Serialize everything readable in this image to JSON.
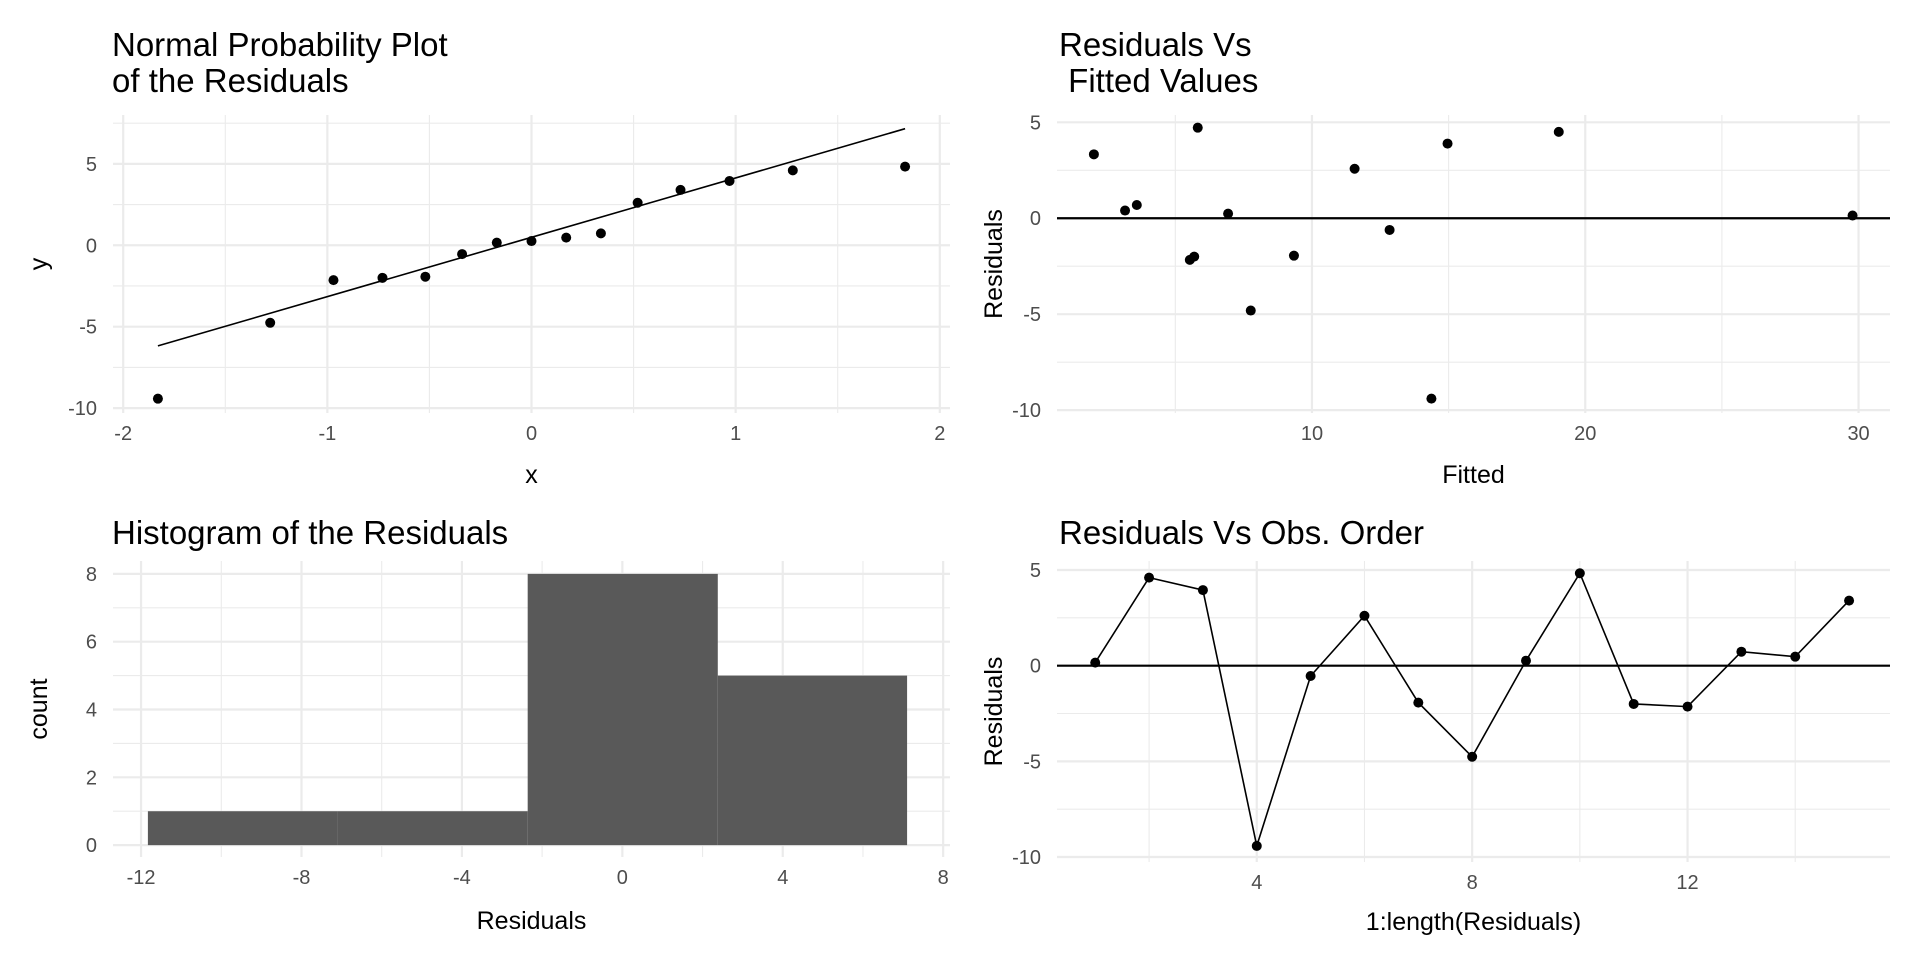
{
  "chart_data": [
    {
      "id": "qq",
      "type": "scatter",
      "title": [
        "Normal Probability Plot",
        "of the Residuals"
      ],
      "xlabel": "x",
      "ylabel": "y",
      "xlim": [
        -2.05,
        2.05
      ],
      "ylim": [
        -10.3,
        8.0
      ],
      "x_major_ticks": [
        -2,
        -1,
        0,
        1,
        2
      ],
      "x_minor_ticks": [
        -1.5,
        -0.5,
        0.5,
        1.5
      ],
      "x_tick_labels": [
        "-2",
        "-1",
        "0",
        "1",
        "2"
      ],
      "y_major_ticks": [
        -10,
        -5,
        0,
        5
      ],
      "y_minor_ticks": [
        -7.5,
        -2.5,
        2.5,
        7.5
      ],
      "y_tick_labels": [
        "-10",
        "-5",
        "0",
        "5"
      ],
      "points": [
        {
          "x": -1.83,
          "y": -9.42
        },
        {
          "x": -1.28,
          "y": -4.76
        },
        {
          "x": -0.97,
          "y": -2.14
        },
        {
          "x": -0.73,
          "y": -2.0
        },
        {
          "x": -0.52,
          "y": -1.93
        },
        {
          "x": -0.34,
          "y": -0.54
        },
        {
          "x": -0.17,
          "y": 0.16
        },
        {
          "x": 0.0,
          "y": 0.26
        },
        {
          "x": 0.17,
          "y": 0.47
        },
        {
          "x": 0.34,
          "y": 0.73
        },
        {
          "x": 0.52,
          "y": 2.61
        },
        {
          "x": 0.73,
          "y": 3.4
        },
        {
          "x": 0.97,
          "y": 3.95
        },
        {
          "x": 1.28,
          "y": 4.6
        },
        {
          "x": 1.83,
          "y": 4.83
        }
      ],
      "reference_line": {
        "x": [
          -1.83,
          1.83
        ],
        "y": [
          -6.18,
          7.16
        ]
      },
      "grid": true
    },
    {
      "id": "fitted",
      "type": "scatter",
      "title": [
        "Residuals Vs",
        " Fitted Values"
      ],
      "xlabel": "Fitted",
      "ylabel": "Residuals",
      "xlim": [
        0.67,
        31.15
      ],
      "ylim": [
        -10.15,
        5.38
      ],
      "x_major_ticks": [
        10,
        20,
        30
      ],
      "x_minor_ticks": [
        5,
        15,
        25
      ],
      "x_tick_labels": [
        "10",
        "20",
        "30"
      ],
      "y_major_ticks": [
        -10,
        -5,
        0,
        5
      ],
      "y_minor_ticks": [
        -7.5,
        -2.5,
        2.5
      ],
      "y_tick_labels": [
        "-10",
        "-5",
        "0",
        "5"
      ],
      "points": [
        {
          "x": 2.02,
          "y": 3.33
        },
        {
          "x": 3.16,
          "y": 0.4
        },
        {
          "x": 3.59,
          "y": 0.69
        },
        {
          "x": 5.82,
          "y": 4.72
        },
        {
          "x": 5.53,
          "y": -2.17
        },
        {
          "x": 5.69,
          "y": -2.0
        },
        {
          "x": 6.93,
          "y": 0.24
        },
        {
          "x": 7.76,
          "y": -4.81
        },
        {
          "x": 9.34,
          "y": -1.95
        },
        {
          "x": 11.56,
          "y": 2.58
        },
        {
          "x": 12.84,
          "y": -0.61
        },
        {
          "x": 14.37,
          "y": -9.4
        },
        {
          "x": 14.96,
          "y": 3.89
        },
        {
          "x": 19.03,
          "y": 4.5
        },
        {
          "x": 29.78,
          "y": 0.14
        }
      ],
      "hline": 0,
      "grid": true
    },
    {
      "id": "hist",
      "type": "bar",
      "title": [
        "Histogram of the Residuals"
      ],
      "xlabel": "Residuals",
      "ylabel": "count",
      "xlim": [
        -12.7,
        8.17
      ],
      "ylim": [
        -0.35,
        8.38
      ],
      "x_major_ticks": [
        -12,
        -8,
        -4,
        0,
        4,
        8
      ],
      "x_minor_ticks": [
        -10,
        -6,
        -2,
        2,
        6
      ],
      "x_tick_labels": [
        "-12",
        "-8",
        "-4",
        "0",
        "4",
        "8"
      ],
      "y_major_ticks": [
        0,
        2,
        4,
        6,
        8
      ],
      "y_minor_ticks": [
        1,
        3,
        5,
        7
      ],
      "y_tick_labels": [
        "0",
        "2",
        "4",
        "6",
        "8"
      ],
      "bins": [
        {
          "x0": -11.83,
          "x1": -7.1,
          "count": 1
        },
        {
          "x0": -7.1,
          "x1": -2.36,
          "count": 1
        },
        {
          "x0": -2.36,
          "x1": 2.38,
          "count": 8
        },
        {
          "x0": 2.38,
          "x1": 7.1,
          "count": 5
        }
      ],
      "grid": true
    },
    {
      "id": "order",
      "type": "line",
      "title": [
        "Residuals Vs Obs. Order"
      ],
      "xlabel": "1:length(Residuals)",
      "ylabel": "Residuals",
      "xlim": [
        0.29,
        15.76
      ],
      "ylim": [
        -10.26,
        5.47
      ],
      "x_major_ticks": [
        4,
        8,
        12
      ],
      "x_minor_ticks": [
        2,
        6,
        10,
        14
      ],
      "x_tick_labels": [
        "4",
        "8",
        "12"
      ],
      "y_major_ticks": [
        -10,
        -5,
        0,
        5
      ],
      "y_minor_ticks": [
        -7.5,
        -2.5,
        2.5
      ],
      "y_tick_labels": [
        "-10",
        "-5",
        "0",
        "5"
      ],
      "x": [
        1,
        2,
        3,
        4,
        5,
        6,
        7,
        8,
        9,
        10,
        11,
        12,
        13,
        14,
        15
      ],
      "values": [
        0.16,
        4.6,
        3.95,
        -9.42,
        -0.54,
        2.61,
        -1.93,
        -4.76,
        0.26,
        4.83,
        -2.0,
        -2.14,
        0.73,
        0.47,
        3.4
      ],
      "hline": 0,
      "grid": true
    }
  ]
}
